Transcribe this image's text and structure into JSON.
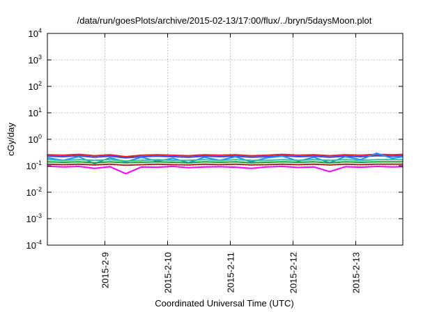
{
  "chart_data": {
    "type": "line",
    "title": "/data/run/goesPlots/archive/2015-02-13/17:00/flux/../bryn/5daysMoon.plot",
    "xlabel": "Coordinated Universal Time (UTC)",
    "ylabel": "cGy/day",
    "yscale": "log",
    "ylim": [
      0.0001,
      10000
    ],
    "xlim": [
      "2015-02-08T02:00",
      "2015-02-13T18:00"
    ],
    "grid": true,
    "legend": "none",
    "y_ticks": [
      {
        "value": 0.0001,
        "base": "10",
        "exp": "-4"
      },
      {
        "value": 0.001,
        "base": "10",
        "exp": "-3"
      },
      {
        "value": 0.01,
        "base": "10",
        "exp": "-2"
      },
      {
        "value": 0.1,
        "base": "10",
        "exp": "-1"
      },
      {
        "value": 1,
        "base": "10",
        "exp": "0"
      },
      {
        "value": 10,
        "base": "10",
        "exp": "1"
      },
      {
        "value": 100,
        "base": "10",
        "exp": "2"
      },
      {
        "value": 1000,
        "base": "10",
        "exp": "3"
      },
      {
        "value": 10000,
        "base": "10",
        "exp": "4"
      }
    ],
    "x_ticks": [
      {
        "value": "2015-02-09T00:00",
        "label": "2015-2-9"
      },
      {
        "value": "2015-02-10T00:00",
        "label": "2015-2-10"
      },
      {
        "value": "2015-02-11T00:00",
        "label": "2015-2-11"
      },
      {
        "value": "2015-02-12T00:00",
        "label": "2015-2-12"
      },
      {
        "value": "2015-02-13T00:00",
        "label": "2015-2-13"
      }
    ],
    "x": [
      "2015-02-08T02:00",
      "2015-02-08T08:00",
      "2015-02-08T14:00",
      "2015-02-08T20:00",
      "2015-02-09T02:00",
      "2015-02-09T08:00",
      "2015-02-09T14:00",
      "2015-02-09T20:00",
      "2015-02-10T02:00",
      "2015-02-10T08:00",
      "2015-02-10T14:00",
      "2015-02-10T20:00",
      "2015-02-11T02:00",
      "2015-02-11T08:00",
      "2015-02-11T14:00",
      "2015-02-11T20:00",
      "2015-02-12T02:00",
      "2015-02-12T08:00",
      "2015-02-12T14:00",
      "2015-02-12T20:00",
      "2015-02-13T02:00",
      "2015-02-13T08:00",
      "2015-02-13T14:00",
      "2015-02-13T18:00"
    ],
    "series": [
      {
        "color": "#e8201c",
        "values": [
          0.26,
          0.25,
          0.27,
          0.24,
          0.26,
          0.22,
          0.25,
          0.26,
          0.25,
          0.24,
          0.26,
          0.25,
          0.26,
          0.24,
          0.25,
          0.27,
          0.25,
          0.26,
          0.24,
          0.26,
          0.25,
          0.27,
          0.26,
          0.27
        ]
      },
      {
        "color": "#3a44ee",
        "values": [
          0.23,
          0.22,
          0.24,
          0.21,
          0.23,
          0.2,
          0.22,
          0.23,
          0.22,
          0.21,
          0.23,
          0.22,
          0.23,
          0.21,
          0.22,
          0.24,
          0.22,
          0.23,
          0.21,
          0.23,
          0.22,
          0.24,
          0.23,
          0.24
        ]
      },
      {
        "color": "#1e90ff",
        "values": [
          0.2,
          0.16,
          0.22,
          0.12,
          0.2,
          0.14,
          0.21,
          0.15,
          0.19,
          0.13,
          0.21,
          0.16,
          0.22,
          0.14,
          0.2,
          0.23,
          0.15,
          0.21,
          0.13,
          0.22,
          0.17,
          0.3,
          0.19,
          0.22
        ]
      },
      {
        "color": "#2fbf9f",
        "values": [
          0.17,
          0.16,
          0.17,
          0.16,
          0.17,
          0.15,
          0.16,
          0.17,
          0.16,
          0.16,
          0.17,
          0.16,
          0.17,
          0.16,
          0.16,
          0.17,
          0.16,
          0.17,
          0.16,
          0.17,
          0.16,
          0.17,
          0.17,
          0.17
        ]
      },
      {
        "color": "#1f9a2f",
        "values": [
          0.14,
          0.135,
          0.14,
          0.13,
          0.14,
          0.13,
          0.135,
          0.14,
          0.135,
          0.13,
          0.14,
          0.135,
          0.14,
          0.13,
          0.135,
          0.14,
          0.135,
          0.14,
          0.13,
          0.14,
          0.135,
          0.14,
          0.14,
          0.14
        ]
      },
      {
        "color": "#a52a2a",
        "values": [
          0.115,
          0.11,
          0.115,
          0.108,
          0.115,
          0.105,
          0.11,
          0.115,
          0.11,
          0.108,
          0.115,
          0.11,
          0.115,
          0.108,
          0.11,
          0.115,
          0.11,
          0.115,
          0.108,
          0.115,
          0.11,
          0.115,
          0.115,
          0.115
        ]
      },
      {
        "color": "#ff00ff",
        "values": [
          0.095,
          0.09,
          0.094,
          0.08,
          0.092,
          0.05,
          0.09,
          0.088,
          0.094,
          0.085,
          0.09,
          0.092,
          0.088,
          0.08,
          0.09,
          0.094,
          0.086,
          0.09,
          0.06,
          0.092,
          0.088,
          0.094,
          0.09,
          0.092
        ]
      }
    ]
  }
}
